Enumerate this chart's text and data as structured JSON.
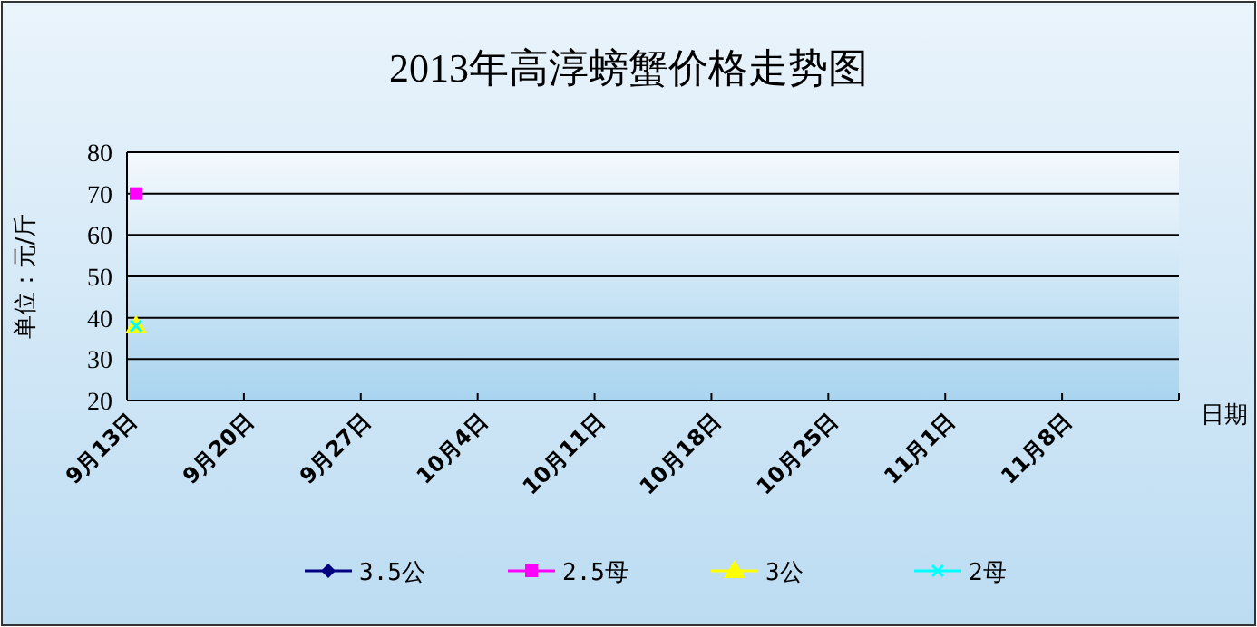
{
  "chart_data": {
    "type": "line",
    "title": "2013年高淳螃蟹价格走势图",
    "ylabel": "单位：元/斤",
    "xlabel": "日期",
    "categories": [
      "9月13日",
      "9月20日",
      "9月27日",
      "10月4日",
      "10月11日",
      "10月18日",
      "10月25日",
      "11月1日",
      "11月8日"
    ],
    "series": [
      {
        "name": "3.5公",
        "color": "#000080",
        "marker": "diamond",
        "values": [
          null,
          null,
          null,
          null,
          null,
          null,
          null,
          null,
          null
        ]
      },
      {
        "name": "2.5母",
        "color": "#ff00ff",
        "marker": "square",
        "values": [
          70,
          null,
          null,
          null,
          null,
          null,
          null,
          null,
          null
        ]
      },
      {
        "name": "3公",
        "color": "#ffff00",
        "marker": "triangle",
        "values": [
          38,
          null,
          null,
          null,
          null,
          null,
          null,
          null,
          null
        ]
      },
      {
        "name": "2母",
        "color": "#00ffff",
        "marker": "cross",
        "values": [
          38,
          null,
          null,
          null,
          null,
          null,
          null,
          null,
          null
        ]
      }
    ],
    "ylim": [
      20,
      80
    ],
    "yticks": [
      20,
      30,
      40,
      50,
      60,
      70,
      80
    ],
    "grid": "y",
    "legend": "bottom"
  }
}
